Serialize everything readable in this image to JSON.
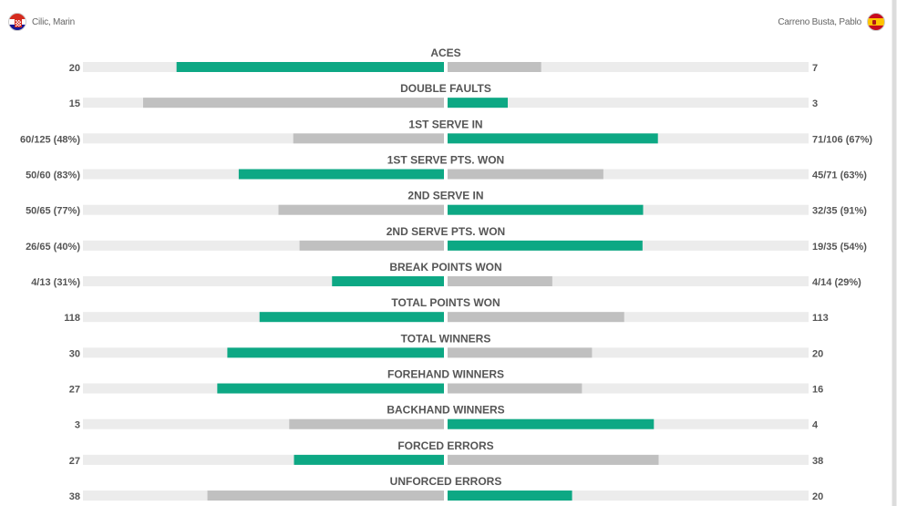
{
  "players": {
    "left": {
      "name": "Cilic, Marin",
      "flag": "croatia-flag-icon"
    },
    "right": {
      "name": "Carreno Busta, Pablo",
      "flag": "spain-flag-icon"
    }
  },
  "colors": {
    "leader": "#0da884",
    "trailer": "#c0c0c0",
    "track": "#ececec"
  },
  "chart_data": {
    "type": "bar",
    "orientation": "diverging-horizontal",
    "categories": [
      "ACES",
      "DOUBLE FAULTS",
      "1ST SERVE IN",
      "1ST SERVE PTS. WON",
      "2ND SERVE IN",
      "2ND SERVE PTS. WON",
      "BREAK POINTS WON",
      "TOTAL POINTS WON",
      "TOTAL WINNERS",
      "FOREHAND WINNERS",
      "BACKHAND WINNERS",
      "FORCED ERRORS",
      "UNFORCED ERRORS"
    ],
    "series": [
      {
        "name": "Cilic, Marin",
        "labels": [
          "20",
          "15",
          "60/125 (48%)",
          "50/60 (83%)",
          "50/65 (77%)",
          "26/65 (40%)",
          "4/13 (31%)",
          "118",
          "30",
          "27",
          "3",
          "27",
          "38"
        ],
        "values": [
          20,
          15,
          48,
          83,
          77,
          40,
          31,
          118,
          30,
          27,
          3,
          27,
          38
        ]
      },
      {
        "name": "Carreno Busta, Pablo",
        "labels": [
          "7",
          "3",
          "71/106 (67%)",
          "45/71 (63%)",
          "32/35 (91%)",
          "19/35 (54%)",
          "4/14 (29%)",
          "113",
          "20",
          "16",
          "4",
          "38",
          "20"
        ],
        "values": [
          7,
          3,
          67,
          63,
          91,
          54,
          29,
          113,
          20,
          16,
          4,
          38,
          20
        ]
      }
    ],
    "highlight": [
      "left",
      "right",
      "right",
      "left",
      "right",
      "right",
      "left",
      "left",
      "left",
      "left",
      "right",
      "left",
      "right"
    ]
  }
}
